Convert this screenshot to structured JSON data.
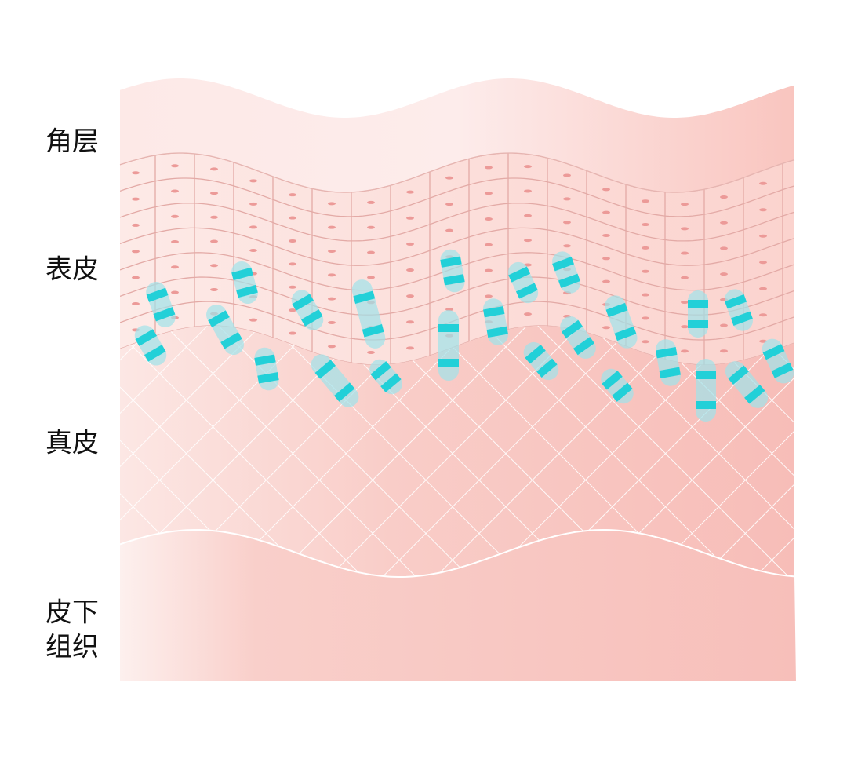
{
  "labels": [
    "角层",
    "表皮",
    "真皮"
  ],
  "subcutis": [
    "皮下",
    "组织"
  ]
}
